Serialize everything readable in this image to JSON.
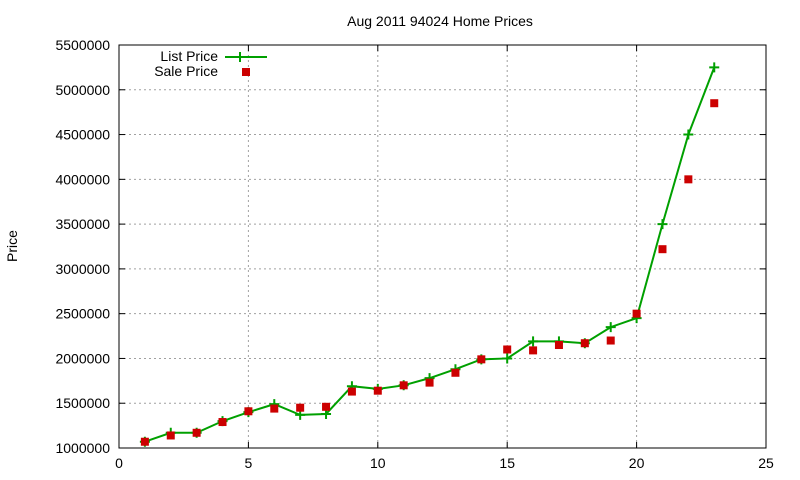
{
  "chart_data": {
    "type": "line",
    "title": "Aug 2011 94024 Home Prices",
    "xlabel": "",
    "ylabel": "Price",
    "xlim": [
      0,
      25
    ],
    "ylim": [
      1000000,
      5500000
    ],
    "x_ticks": [
      0,
      5,
      10,
      15,
      20,
      25
    ],
    "y_ticks": [
      1000000,
      1500000,
      2000000,
      2500000,
      3000000,
      3500000,
      4000000,
      4500000,
      5000000,
      5500000
    ],
    "grid": true,
    "legend_position": "top-left",
    "x": [
      1,
      2,
      3,
      4,
      5,
      6,
      7,
      8,
      9,
      10,
      11,
      12,
      13,
      14,
      15,
      16,
      17,
      18,
      19,
      20,
      21,
      22,
      23
    ],
    "series": [
      {
        "name": "List Price",
        "style": "linespoints",
        "marker": "plus",
        "color": "#00a000",
        "values": [
          1070000,
          1170000,
          1170000,
          1300000,
          1400000,
          1490000,
          1370000,
          1380000,
          1690000,
          1660000,
          1700000,
          1780000,
          1880000,
          1990000,
          2000000,
          2190000,
          2190000,
          2170000,
          2350000,
          2450000,
          3500000,
          4500000,
          5250000
        ]
      },
      {
        "name": "Sale Price",
        "style": "points",
        "marker": "square",
        "color": "#cc0000",
        "values": [
          1070000,
          1140000,
          1170000,
          1290000,
          1410000,
          1440000,
          1450000,
          1460000,
          1630000,
          1640000,
          1700000,
          1730000,
          1840000,
          1990000,
          2100000,
          2090000,
          2150000,
          2170000,
          2200000,
          2500000,
          3220000,
          4000000,
          4850000
        ]
      }
    ]
  }
}
